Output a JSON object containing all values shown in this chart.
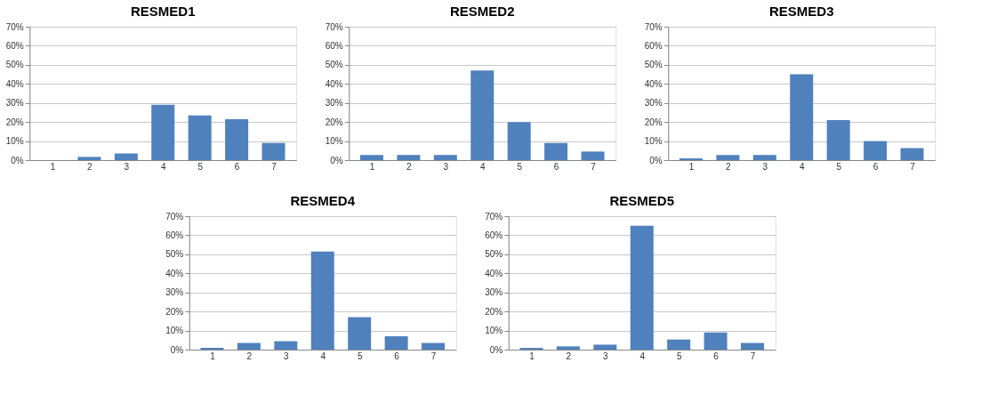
{
  "chart_data": [
    {
      "type": "bar",
      "title": "RESMED1",
      "categories": [
        "1",
        "2",
        "3",
        "4",
        "5",
        "6",
        "7"
      ],
      "values": [
        0,
        1.7,
        3.5,
        29,
        23.5,
        21.5,
        9
      ],
      "color": "#4f81bd",
      "ylim": [
        0,
        70
      ],
      "yticks": [
        {
          "value": 0,
          "label": "0%"
        },
        {
          "value": 10,
          "label": "10%"
        },
        {
          "value": 20,
          "label": "20%"
        },
        {
          "value": 30,
          "label": "30%"
        },
        {
          "value": 40,
          "label": "40%"
        },
        {
          "value": 50,
          "label": "50%"
        },
        {
          "value": 60,
          "label": "60%"
        },
        {
          "value": 70,
          "label": "70%"
        }
      ],
      "grid": "y"
    },
    {
      "type": "bar",
      "title": "RESMED2",
      "categories": [
        "1",
        "2",
        "3",
        "4",
        "5",
        "6",
        "7"
      ],
      "values": [
        2.7,
        2.7,
        2.7,
        47,
        20,
        9,
        4.5
      ],
      "color": "#4f81bd",
      "ylim": [
        0,
        70
      ],
      "yticks": [
        {
          "value": 0,
          "label": "0%"
        },
        {
          "value": 10,
          "label": "10%"
        },
        {
          "value": 20,
          "label": "20%"
        },
        {
          "value": 30,
          "label": "30%"
        },
        {
          "value": 40,
          "label": "40%"
        },
        {
          "value": 50,
          "label": "50%"
        },
        {
          "value": 60,
          "label": "60%"
        },
        {
          "value": 70,
          "label": "70%"
        }
      ],
      "grid": "y"
    },
    {
      "type": "bar",
      "title": "RESMED3",
      "categories": [
        "1",
        "2",
        "3",
        "4",
        "5",
        "6",
        "7"
      ],
      "values": [
        0.9,
        2.7,
        2.7,
        45,
        21,
        10,
        6.3
      ],
      "color": "#4f81bd",
      "ylim": [
        0,
        70
      ],
      "yticks": [
        {
          "value": 0,
          "label": "0%"
        },
        {
          "value": 10,
          "label": "10%"
        },
        {
          "value": 20,
          "label": "20%"
        },
        {
          "value": 30,
          "label": "30%"
        },
        {
          "value": 40,
          "label": "40%"
        },
        {
          "value": 50,
          "label": "50%"
        },
        {
          "value": 60,
          "label": "60%"
        },
        {
          "value": 70,
          "label": "70%"
        }
      ],
      "grid": "y"
    },
    {
      "type": "bar",
      "title": "RESMED4",
      "categories": [
        "1",
        "2",
        "3",
        "4",
        "5",
        "6",
        "7"
      ],
      "values": [
        0.9,
        3.5,
        4.4,
        51.5,
        17,
        7,
        3.5
      ],
      "color": "#4f81bd",
      "ylim": [
        0,
        70
      ],
      "yticks": [
        {
          "value": 0,
          "label": "0%"
        },
        {
          "value": 10,
          "label": "10%"
        },
        {
          "value": 20,
          "label": "20%"
        },
        {
          "value": 30,
          "label": "30%"
        },
        {
          "value": 40,
          "label": "40%"
        },
        {
          "value": 50,
          "label": "50%"
        },
        {
          "value": 60,
          "label": "60%"
        },
        {
          "value": 70,
          "label": "70%"
        }
      ],
      "grid": "y"
    },
    {
      "type": "bar",
      "title": "RESMED5",
      "categories": [
        "1",
        "2",
        "3",
        "4",
        "5",
        "6",
        "7"
      ],
      "values": [
        0.9,
        1.7,
        2.6,
        65,
        5.3,
        9,
        3.5
      ],
      "color": "#4f81bd",
      "ylim": [
        0,
        70
      ],
      "yticks": [
        {
          "value": 0,
          "label": "0%"
        },
        {
          "value": 10,
          "label": "10%"
        },
        {
          "value": 20,
          "label": "20%"
        },
        {
          "value": 30,
          "label": "30%"
        },
        {
          "value": 40,
          "label": "40%"
        },
        {
          "value": 50,
          "label": "50%"
        },
        {
          "value": 60,
          "label": "60%"
        },
        {
          "value": 70,
          "label": "70%"
        }
      ],
      "grid": "y"
    }
  ]
}
